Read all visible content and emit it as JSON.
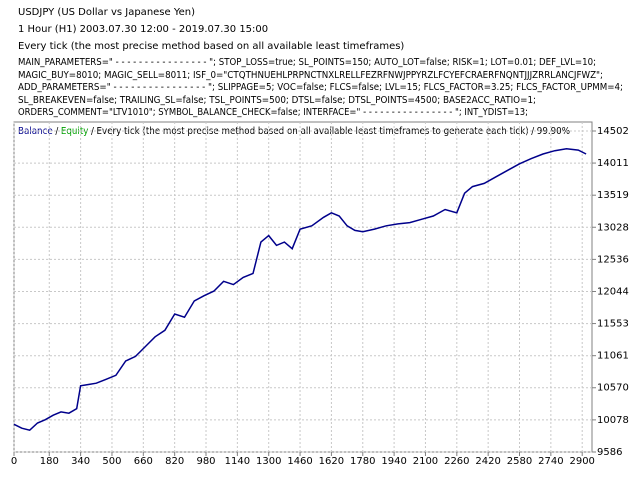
{
  "header": {
    "symbol": "USDJPY (US Dollar vs Japanese Yen)",
    "period": "1 Hour (H1) 2003.07.30 12:00 - 2019.07.30 15:00",
    "model": "Every tick (the most precise method based on all available least timeframes)",
    "parameters": [
      "MAIN_PARAMETERS=\" - - - - - - - - - - - - - - - - \"; STOP_LOSS=true; SL_POINTS=150; AUTO_LOT=false; RISK=1; LOT=0.01; DEF_LVL=10;",
      "MAGIC_BUY=8010; MAGIC_SELL=8011; ISF_0=\"CTQTHNUEHLPRPNCTNXLRELLFEZRFNWJPPYRZLFCYEFCRAERFNQNTJJJZRRLANCJFWZ\";",
      "ADD_PARAMETERS=\" - - - - - - - - - - - - - - - - \"; SLIPPAGE=5; VOC=false; FLCS=false; LVL=15; FLCS_FACTOR=3.25; FLCS_FACTOR_UPMM=4;",
      "SL_BREAKEVEN=false; TRAILING_SL=false; TSL_POINTS=500; DTSL=false; DTSL_POINTS=4500; BASE2ACC_RATIO=1;",
      "ORDERS_COMMENT=\"LTV1010\"; SYMBOL_BALANCE_CHECK=false; INTERFACE=\" - - - - - - - - - - - - - - - - \"; INT_YDIST=13;"
    ]
  },
  "chart_data": {
    "type": "line",
    "legend": {
      "balance": "Balance",
      "separator": "/",
      "equity": "Equity",
      "equity_color": "#00a000",
      "model": "Every tick (the most precise method based on all available least timeframes to generate each tick)",
      "quality": "99.90%"
    },
    "x": [
      0,
      40,
      80,
      120,
      160,
      200,
      240,
      280,
      320,
      340,
      380,
      420,
      470,
      520,
      570,
      620,
      670,
      720,
      770,
      820,
      870,
      920,
      970,
      1020,
      1070,
      1120,
      1170,
      1220,
      1260,
      1300,
      1340,
      1380,
      1420,
      1460,
      1520,
      1580,
      1620,
      1660,
      1700,
      1740,
      1780,
      1840,
      1900,
      1960,
      2020,
      2080,
      2140,
      2200,
      2260,
      2300,
      2340,
      2400,
      2460,
      2520,
      2580,
      2640,
      2700,
      2760,
      2820,
      2880,
      2920
    ],
    "series": [
      {
        "name": "Balance",
        "color": "#00008b",
        "values": [
          10010,
          9950,
          9920,
          10030,
          10080,
          10150,
          10200,
          10180,
          10250,
          10600,
          10620,
          10640,
          10700,
          10760,
          10980,
          11050,
          11200,
          11350,
          11450,
          11700,
          11650,
          11900,
          11980,
          12050,
          12200,
          12150,
          12260,
          12320,
          12800,
          12900,
          12750,
          12800,
          12700,
          13000,
          13050,
          13180,
          13250,
          13200,
          13050,
          12980,
          12960,
          13000,
          13050,
          13080,
          13100,
          13150,
          13200,
          13300,
          13250,
          13550,
          13650,
          13700,
          13800,
          13900,
          14000,
          14080,
          14150,
          14200,
          14230,
          14210,
          14150
        ]
      }
    ],
    "xlim": [
      0,
      2950
    ],
    "xticks": [
      0,
      180,
      340,
      500,
      660,
      820,
      980,
      1140,
      1300,
      1460,
      1620,
      1780,
      1940,
      2100,
      2260,
      2420,
      2580,
      2740,
      2900
    ],
    "ylim": [
      9586,
      14640
    ],
    "yticks": [
      9586,
      10078,
      10570,
      11061,
      11553,
      12044,
      12536,
      13028,
      13519,
      14011,
      14502
    ],
    "grid": true
  }
}
